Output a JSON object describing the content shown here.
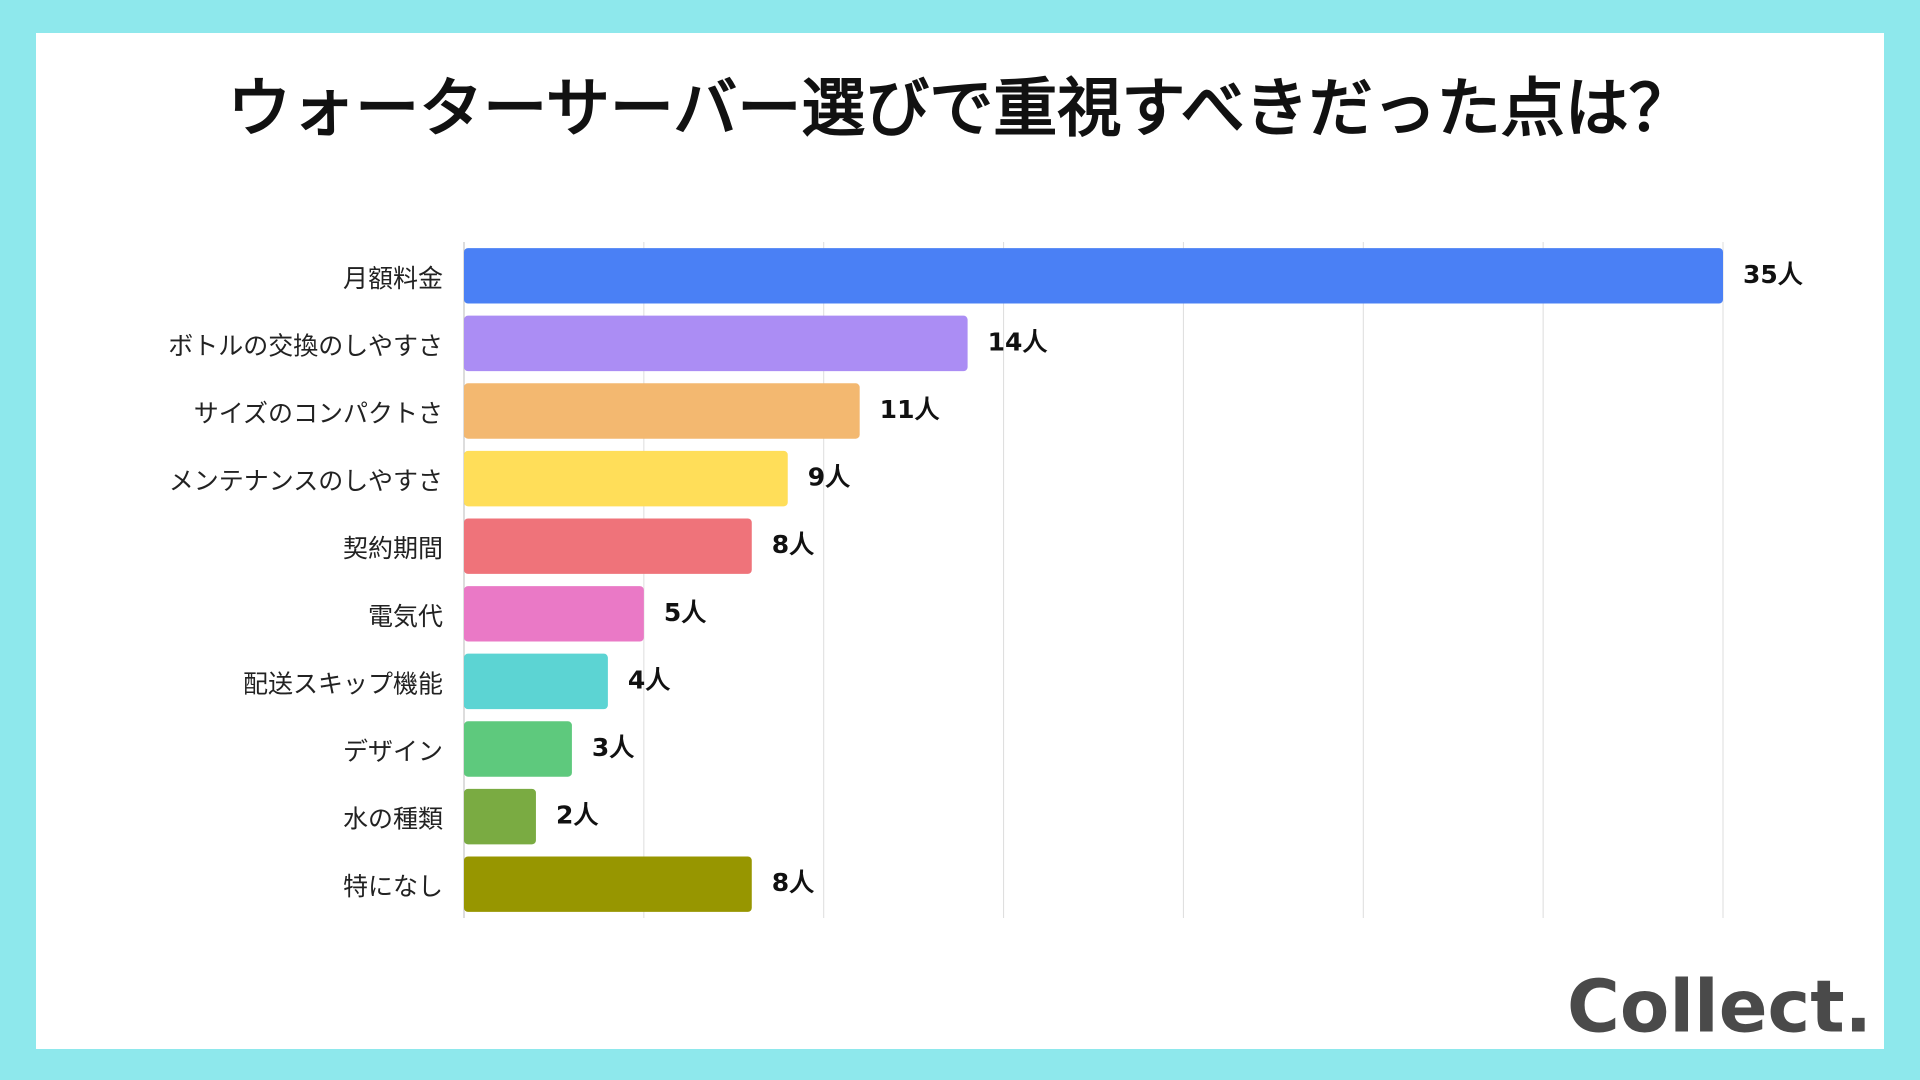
{
  "chart_data": {
    "type": "bar",
    "orientation": "horizontal",
    "title": "ウォーターサーバー選びで重視すべきだった点は？",
    "categories": [
      "月額料金",
      "ボトルの交換のしやすさ",
      "サイズのコンパクトさ",
      "メンテナンスのしやすさ",
      "契約期間",
      "電気代",
      "配送スキップ機能",
      "デザイン",
      "水の種類",
      "特になし"
    ],
    "values": [
      35,
      14,
      11,
      9,
      8,
      5,
      4,
      3,
      2,
      8
    ],
    "value_labels": [
      "35人",
      "14人",
      "11人",
      "9人",
      "8人",
      "5人",
      "4人",
      "3人",
      "2人",
      "8人"
    ],
    "colors": [
      "#4a80f5",
      "#ab8df4",
      "#f3b870",
      "#ffde59",
      "#ef737a",
      "#ea79c6",
      "#5cd4d3",
      "#5ec97d",
      "#7aab42",
      "#979600"
    ],
    "xlim": [
      0,
      35
    ],
    "xticks": [
      0,
      5,
      10,
      15,
      20,
      25,
      30,
      35
    ],
    "grid": true
  },
  "brand": "Collect."
}
